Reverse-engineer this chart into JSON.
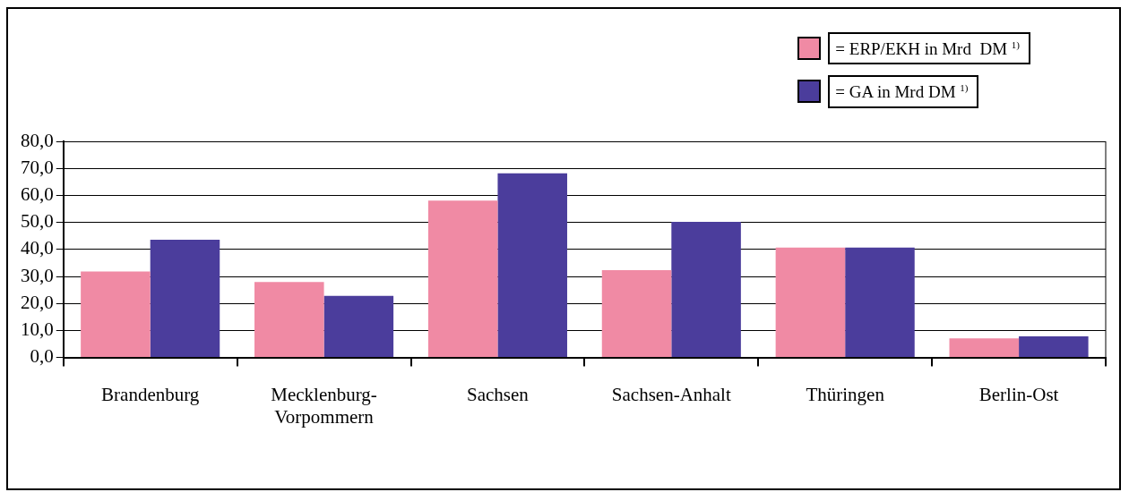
{
  "chart_data": {
    "type": "bar",
    "categories": [
      "Brandenburg",
      "Mecklenburg-Vorpommern",
      "Sachsen",
      "Sachsen-Anhalt",
      "Thüringen",
      "Berlin-Ost"
    ],
    "series": [
      {
        "name": "= ERP/EKH in Mrd  DM $^{1)}$",
        "color": "#f08aa4",
        "values": [
          31.8,
          27.9,
          58.1,
          32.3,
          40.7,
          7.1
        ]
      },
      {
        "name": "= GA in Mrd DM $^{1)}$",
        "color": "#4b3d9c",
        "values": [
          43.6,
          22.8,
          68.2,
          50.2,
          40.7,
          7.8
        ]
      }
    ],
    "ylim": [
      0,
      80
    ],
    "yticks": [
      {
        "value": 0,
        "label": "0,0"
      },
      {
        "value": 10,
        "label": "10,0"
      },
      {
        "value": 20,
        "label": "20,0"
      },
      {
        "value": 30,
        "label": "30,0"
      },
      {
        "value": 40,
        "label": "40,0"
      },
      {
        "value": 50,
        "label": "50,0"
      },
      {
        "value": 60,
        "label": "60,0"
      },
      {
        "value": 70,
        "label": "70,0"
      },
      {
        "value": 80,
        "label": "80,0"
      }
    ],
    "grid": "y",
    "legend": "top right"
  }
}
